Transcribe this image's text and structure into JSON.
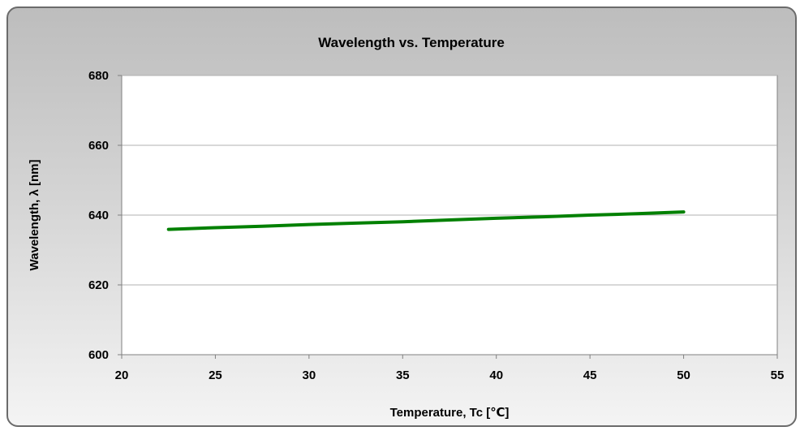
{
  "chart_data": {
    "type": "line",
    "title": "Wavelength vs. Temperature",
    "xlabel": "Temperature, Tc [℃]",
    "ylabel": "Wavelength, λ [nm]",
    "xlim": [
      20,
      55
    ],
    "ylim": [
      600,
      680
    ],
    "xticks": [
      20,
      25,
      30,
      35,
      40,
      45,
      50,
      55
    ],
    "yticks": [
      600,
      620,
      640,
      660,
      680
    ],
    "grid": "horizontal",
    "legend": "none",
    "series": [
      {
        "color": "#008000",
        "x": [
          22.5,
          25,
          27.5,
          30,
          32.5,
          35,
          37.5,
          40,
          42.5,
          45,
          47.5,
          50
        ],
        "y": [
          635.9,
          636.4,
          636.8,
          637.3,
          637.7,
          638.1,
          638.6,
          639.1,
          639.5,
          640.0,
          640.4,
          640.9
        ]
      }
    ]
  }
}
